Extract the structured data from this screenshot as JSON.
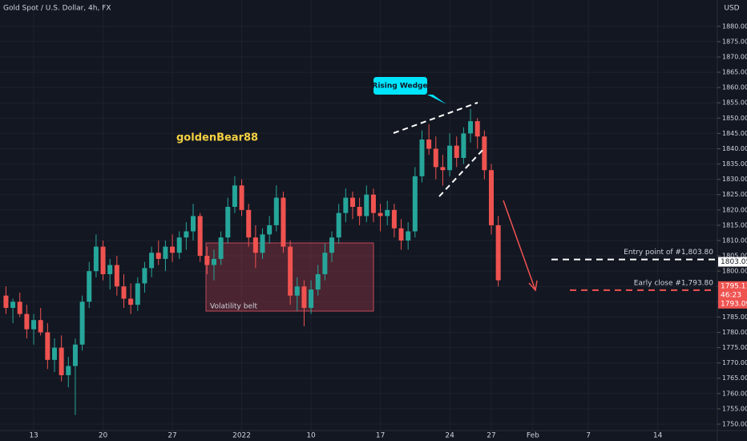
{
  "chart_data": {
    "type": "candlestick",
    "title": "Gold Spot / U.S. Dollar, 4h, FX",
    "currency": "USD",
    "author": "goldenBear88",
    "pattern_label": "Rising Wedge",
    "zone_label": "Volatility belt",
    "up_color": "#26a69a",
    "down_color": "#ef5350",
    "xlim": [
      -2.43,
      49.3
    ],
    "ylim": [
      1747.9,
      1888.6
    ],
    "grid": true,
    "xticks": [
      {
        "value": 0,
        "label": "13"
      },
      {
        "value": 5,
        "label": "20"
      },
      {
        "value": 10,
        "label": "27"
      },
      {
        "value": 15,
        "label": "2022"
      },
      {
        "value": 20,
        "label": "10"
      },
      {
        "value": 25,
        "label": "17"
      },
      {
        "value": 30,
        "label": "24"
      },
      {
        "value": 33,
        "label": "27"
      },
      {
        "value": 36,
        "label": "Feb"
      },
      {
        "value": 40,
        "label": "7"
      },
      {
        "value": 45,
        "label": "14"
      }
    ],
    "yticks": [
      {
        "value": 1750,
        "label": "1750.00"
      },
      {
        "value": 1755,
        "label": "1755.00"
      },
      {
        "value": 1760,
        "label": "1760.00"
      },
      {
        "value": 1765,
        "label": "1765.00"
      },
      {
        "value": 1770,
        "label": "1770.00"
      },
      {
        "value": 1775,
        "label": "1775.00"
      },
      {
        "value": 1780,
        "label": "1780.00"
      },
      {
        "value": 1785,
        "label": "1785.00"
      },
      {
        "value": 1790,
        "label": "1790.00"
      },
      {
        "value": 1795,
        "label": "1795.00"
      },
      {
        "value": 1800,
        "label": "1800.00"
      },
      {
        "value": 1805,
        "label": "1805.00"
      },
      {
        "value": 1810,
        "label": "1810.00"
      },
      {
        "value": 1815,
        "label": "1815.00"
      },
      {
        "value": 1820,
        "label": "1820.00"
      },
      {
        "value": 1825,
        "label": "1825.00"
      },
      {
        "value": 1830,
        "label": "1830.00"
      },
      {
        "value": 1835,
        "label": "1835.00"
      },
      {
        "value": 1840,
        "label": "1840.00"
      },
      {
        "value": 1845,
        "label": "1845.00"
      },
      {
        "value": 1850,
        "label": "1850.00"
      },
      {
        "value": 1855,
        "label": "1855.00"
      },
      {
        "value": 1860,
        "label": "1860.00"
      },
      {
        "value": 1865,
        "label": "1865.00"
      },
      {
        "value": 1870,
        "label": "1870.00"
      },
      {
        "value": 1875,
        "label": "1875.00"
      },
      {
        "value": 1880,
        "label": "1880.00"
      }
    ],
    "x": [
      -2,
      -1.5,
      -1,
      -0.5,
      0,
      0.5,
      1,
      1.5,
      2,
      2.5,
      3,
      3.5,
      4,
      4.5,
      5,
      5.5,
      6,
      6.5,
      7,
      7.5,
      8,
      8.5,
      9,
      9.5,
      10,
      10.5,
      11,
      11.5,
      12,
      12.5,
      13,
      13.5,
      14,
      14.5,
      15,
      15.5,
      16,
      16.5,
      17,
      17.5,
      18,
      18.5,
      19,
      19.5,
      20,
      20.5,
      21,
      21.5,
      22,
      22.5,
      23,
      23.5,
      24,
      24.5,
      25,
      25.5,
      26,
      26.5,
      27,
      27.5,
      28,
      28.5,
      29,
      29.5,
      30,
      30.5,
      31,
      31.5,
      32,
      32.5,
      33,
      33.5
    ],
    "ohlc": [
      [
        1792,
        1795,
        1786,
        1788
      ],
      [
        1788,
        1791,
        1783,
        1790
      ],
      [
        1790,
        1793,
        1785,
        1786
      ],
      [
        1786,
        1789,
        1778,
        1781
      ],
      [
        1781,
        1786,
        1776,
        1784
      ],
      [
        1784,
        1788,
        1779,
        1780
      ],
      [
        1780,
        1783,
        1768,
        1771
      ],
      [
        1771,
        1778,
        1767,
        1775
      ],
      [
        1775,
        1779,
        1764,
        1766
      ],
      [
        1766,
        1772,
        1762,
        1769
      ],
      [
        1769,
        1778,
        1753,
        1776
      ],
      [
        1776,
        1792,
        1774,
        1790
      ],
      [
        1790,
        1803,
        1788,
        1800
      ],
      [
        1800,
        1812,
        1798,
        1808
      ],
      [
        1808,
        1810,
        1797,
        1799
      ],
      [
        1799,
        1804,
        1794,
        1802
      ],
      [
        1802,
        1805,
        1792,
        1795
      ],
      [
        1795,
        1799,
        1788,
        1791
      ],
      [
        1791,
        1796,
        1786,
        1789
      ],
      [
        1789,
        1798,
        1787,
        1796
      ],
      [
        1796,
        1803,
        1793,
        1801
      ],
      [
        1801,
        1808,
        1798,
        1806
      ],
      [
        1806,
        1810,
        1802,
        1804
      ],
      [
        1804,
        1810,
        1800,
        1808
      ],
      [
        1808,
        1812,
        1803,
        1806
      ],
      [
        1806,
        1813,
        1804,
        1811
      ],
      [
        1811,
        1816,
        1807,
        1813
      ],
      [
        1813,
        1822,
        1810,
        1818
      ],
      [
        1818,
        1819,
        1803,
        1805
      ],
      [
        1805,
        1808,
        1799,
        1802
      ],
      [
        1802,
        1807,
        1797,
        1804
      ],
      [
        1804,
        1813,
        1802,
        1811
      ],
      [
        1811,
        1824,
        1809,
        1821
      ],
      [
        1821,
        1831,
        1819,
        1828
      ],
      [
        1828,
        1830,
        1818,
        1820
      ],
      [
        1820,
        1822,
        1808,
        1811
      ],
      [
        1811,
        1815,
        1801,
        1806
      ],
      [
        1806,
        1814,
        1804,
        1812
      ],
      [
        1812,
        1818,
        1809,
        1815
      ],
      [
        1815,
        1828,
        1813,
        1824
      ],
      [
        1824,
        1826,
        1806,
        1808
      ],
      [
        1808,
        1810,
        1789,
        1792
      ],
      [
        1792,
        1798,
        1787,
        1795
      ],
      [
        1795,
        1797,
        1782,
        1788
      ],
      [
        1788,
        1797,
        1786,
        1794
      ],
      [
        1794,
        1802,
        1792,
        1799
      ],
      [
        1799,
        1809,
        1797,
        1806
      ],
      [
        1806,
        1813,
        1803,
        1811
      ],
      [
        1811,
        1822,
        1809,
        1819
      ],
      [
        1819,
        1827,
        1816,
        1824
      ],
      [
        1824,
        1826,
        1817,
        1821
      ],
      [
        1821,
        1824,
        1815,
        1818
      ],
      [
        1818,
        1828,
        1816,
        1825
      ],
      [
        1825,
        1827,
        1816,
        1819
      ],
      [
        1819,
        1822,
        1813,
        1818
      ],
      [
        1818,
        1823,
        1815,
        1820
      ],
      [
        1820,
        1822,
        1811,
        1814
      ],
      [
        1814,
        1817,
        1807,
        1810
      ],
      [
        1810,
        1816,
        1807,
        1813
      ],
      [
        1813,
        1834,
        1811,
        1831
      ],
      [
        1831,
        1846,
        1829,
        1843
      ],
      [
        1843,
        1848,
        1838,
        1840
      ],
      [
        1840,
        1844,
        1830,
        1834
      ],
      [
        1834,
        1838,
        1828,
        1833
      ],
      [
        1833,
        1845,
        1831,
        1841
      ],
      [
        1841,
        1844,
        1834,
        1837
      ],
      [
        1837,
        1847,
        1835,
        1845
      ],
      [
        1845,
        1853,
        1842,
        1849
      ],
      [
        1849,
        1850,
        1840,
        1844
      ],
      [
        1844,
        1846,
        1830,
        1833
      ],
      [
        1833,
        1835,
        1812,
        1815
      ],
      [
        1815,
        1818,
        1795,
        1797
      ]
    ],
    "levels": [
      {
        "label": "Entry point of #1,803.80",
        "value": 1803.8,
        "color": "#ffffff"
      },
      {
        "label": "Early close #1,793.80",
        "value": 1793.8,
        "color": "#ef5350"
      }
    ],
    "price_tags": [
      {
        "value": 1803.05
      },
      {
        "value": 1795.11,
        "countdown": "46:23"
      },
      {
        "value": 1793.09
      }
    ]
  }
}
